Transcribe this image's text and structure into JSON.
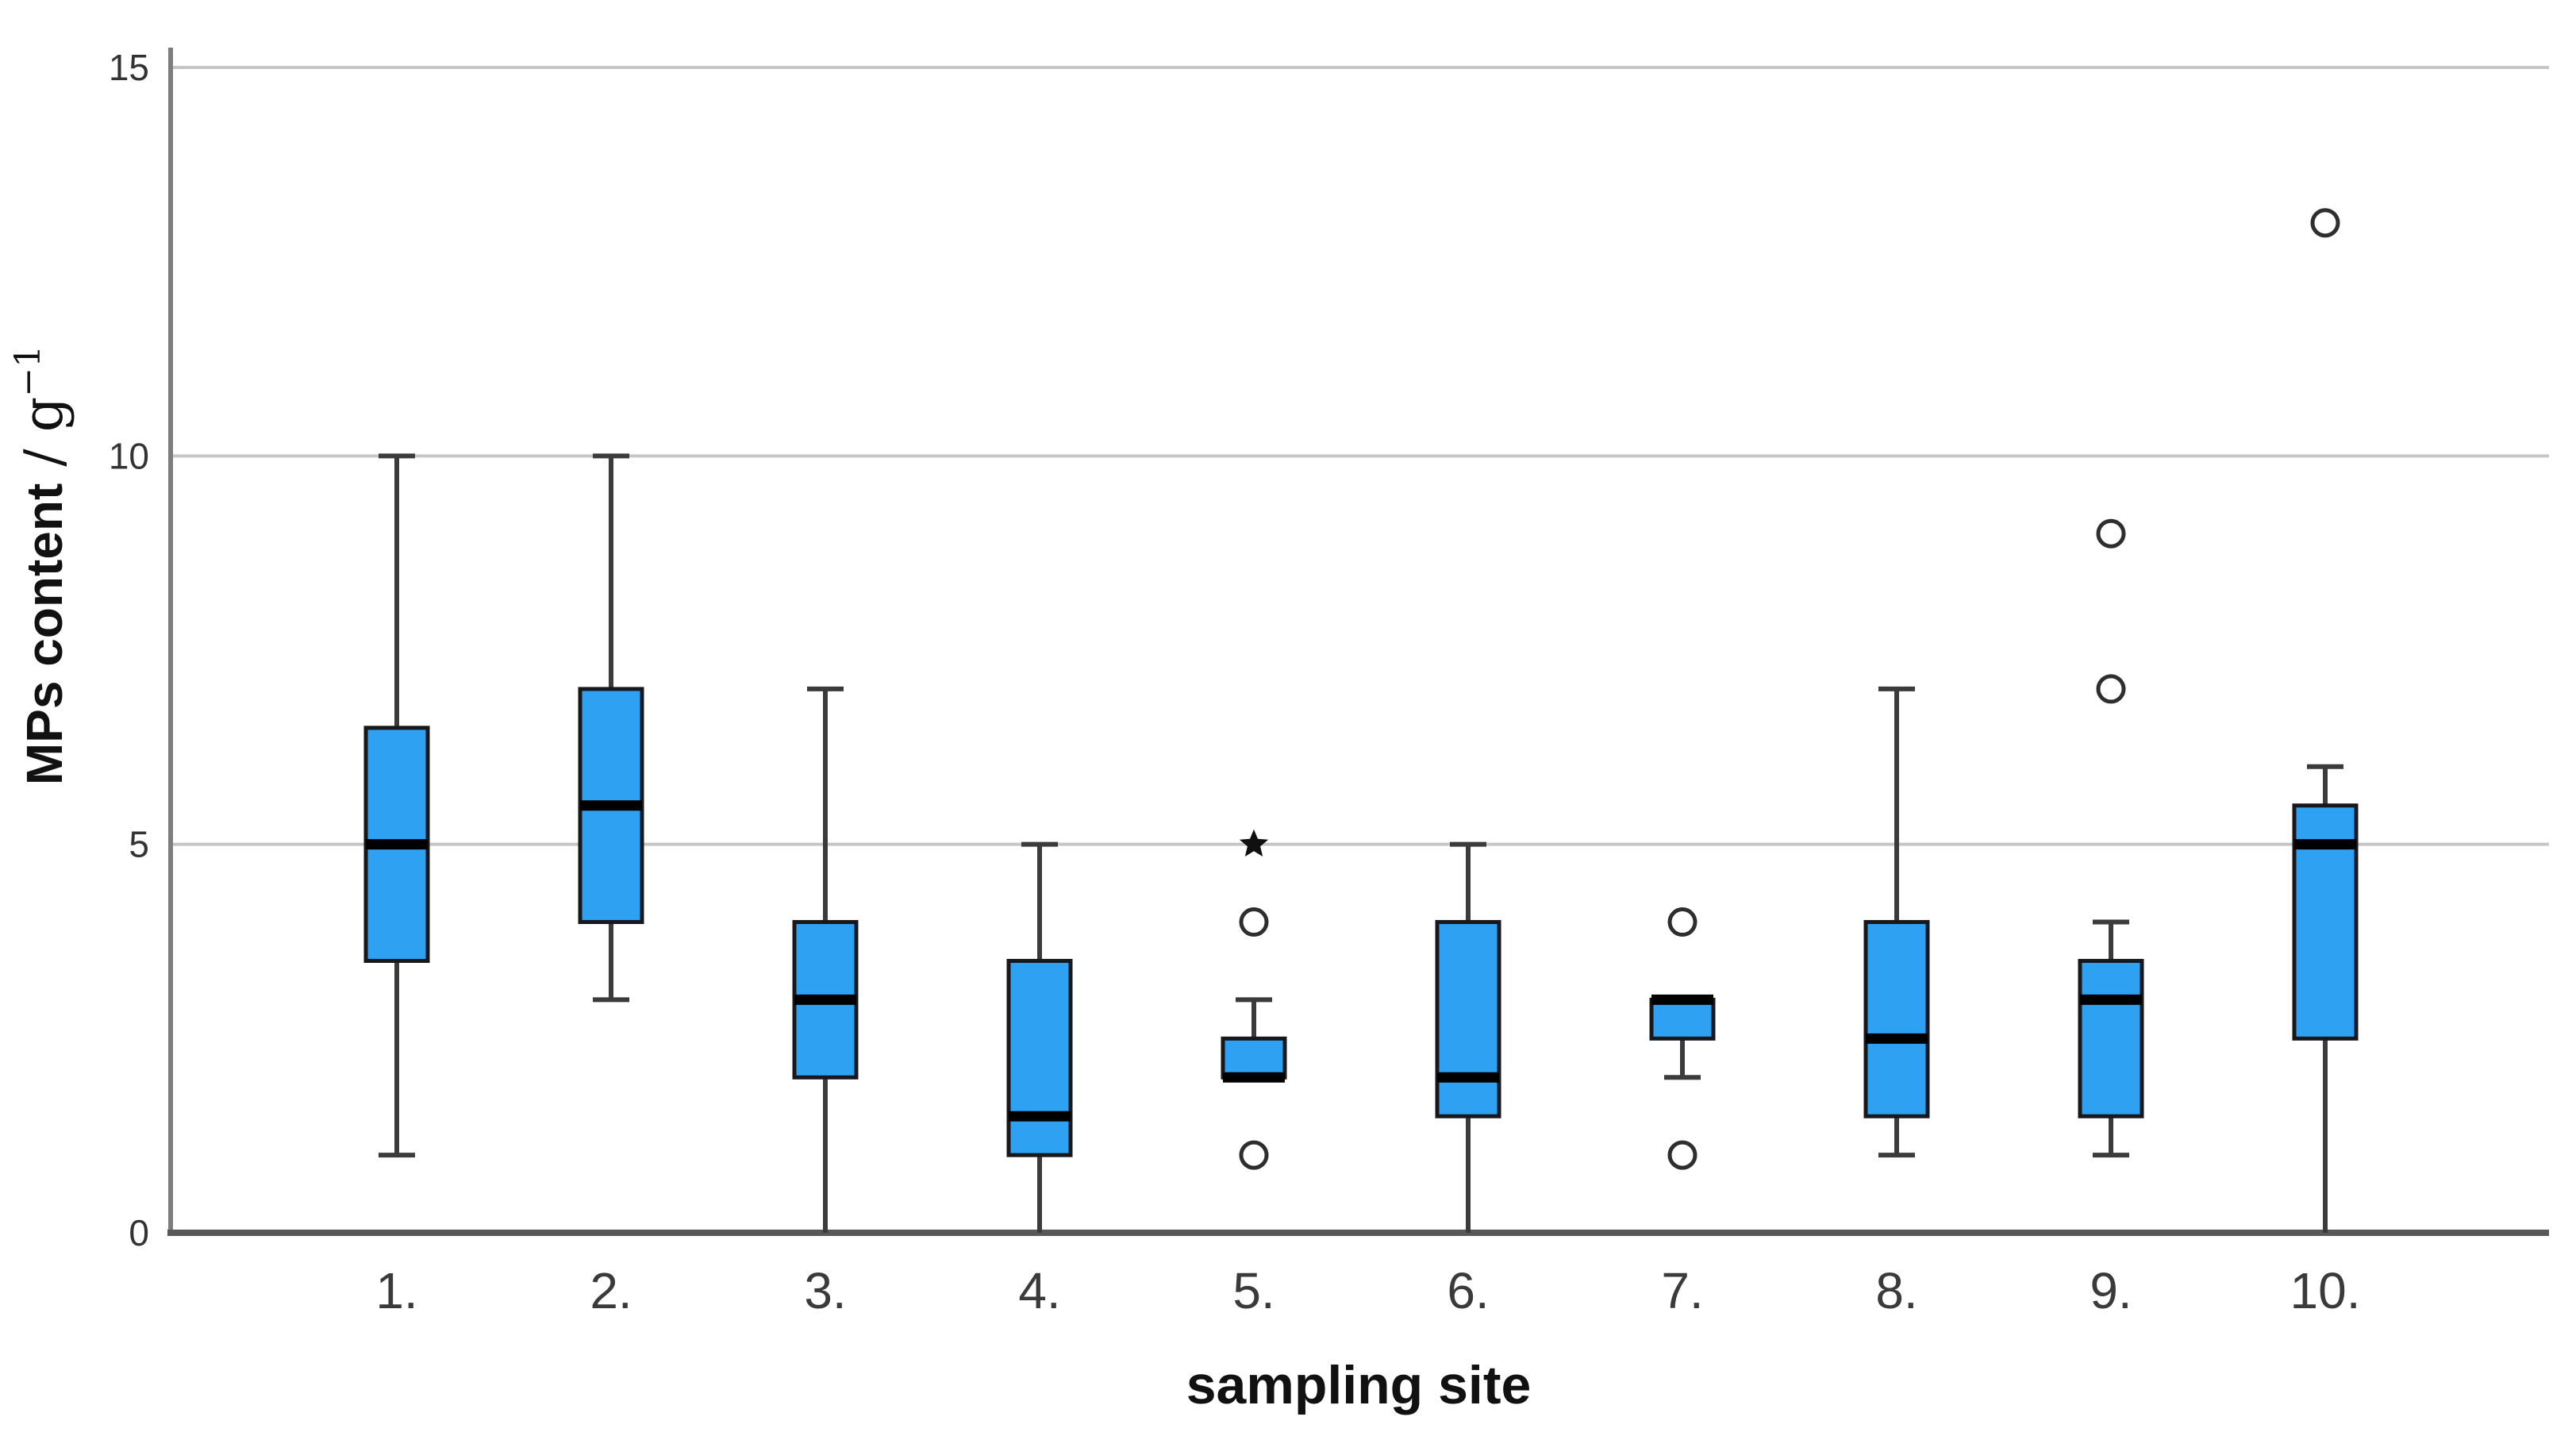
{
  "chart_data": {
    "type": "boxplot",
    "title": "",
    "xlabel": "sampling site",
    "ylabel": {
      "full": "MPs content / g−1",
      "prefix": "MPs content",
      "separator": " / ",
      "unit": "g",
      "exponent": "−1"
    },
    "yticks": [
      0,
      5,
      10,
      15
    ],
    "ytick_labels": [
      "0",
      "5",
      "10",
      "15"
    ],
    "ylim": [
      0,
      15.5
    ],
    "grid": "horizontal-gridlines-at-5-10-15",
    "legend": "none",
    "categories": [
      "1.",
      "2.",
      "3.",
      "4.",
      "5.",
      "6.",
      "7.",
      "8.",
      "9.",
      "10."
    ],
    "boxes": [
      {
        "category": "1.",
        "min": 1,
        "q1": 3.5,
        "median": 5,
        "q3": 6.5,
        "max": 10,
        "outliers": [],
        "extremes": []
      },
      {
        "category": "2.",
        "min": 3,
        "q1": 4,
        "median": 5.5,
        "q3": 7,
        "max": 10,
        "outliers": [],
        "extremes": []
      },
      {
        "category": "3.",
        "min": 0,
        "q1": 2,
        "median": 3,
        "q3": 4,
        "max": 7,
        "outliers": [],
        "extremes": []
      },
      {
        "category": "4.",
        "min": 0,
        "q1": 1,
        "median": 1.5,
        "q3": 3.5,
        "max": 5,
        "outliers": [],
        "extremes": []
      },
      {
        "category": "5.",
        "min": 2,
        "q1": 2,
        "median": 2,
        "q3": 2.5,
        "max": 3,
        "outliers": [
          4,
          1
        ],
        "extremes": [
          5
        ]
      },
      {
        "category": "6.",
        "min": 0,
        "q1": 1.5,
        "median": 2,
        "q3": 4,
        "max": 5,
        "outliers": [],
        "extremes": []
      },
      {
        "category": "7.",
        "min": 2,
        "q1": 2.5,
        "median": 3,
        "q3": 3,
        "max": 3,
        "outliers": [
          4,
          1
        ],
        "extremes": []
      },
      {
        "category": "8.",
        "min": 1,
        "q1": 1.5,
        "median": 2.5,
        "q3": 4,
        "max": 7,
        "outliers": [],
        "extremes": []
      },
      {
        "category": "9.",
        "min": 1,
        "q1": 1.5,
        "median": 3,
        "q3": 3.5,
        "max": 4,
        "outliers": [
          9,
          7
        ],
        "extremes": []
      },
      {
        "category": "10.",
        "min": 0,
        "q1": 2.5,
        "median": 5,
        "q3": 5.5,
        "max": 6,
        "outliers": [
          13
        ],
        "extremes": []
      }
    ],
    "marker_legend": {
      "circle": "outlier",
      "star": "extreme value"
    },
    "colors": {
      "box_fill": "#2EA1F2",
      "box_border": "#17171c",
      "median": "#000000",
      "whisker": "#3b3b3b",
      "outlier_stroke": "#2e2e2e",
      "extreme_fill": "#101010",
      "gridline": "#c6c6c6",
      "y_axis_line": "#7d7d7d",
      "x_axis_line": "#585858",
      "tick_label": "#333333",
      "axis_title": "#111111",
      "background": "#ffffff"
    }
  }
}
